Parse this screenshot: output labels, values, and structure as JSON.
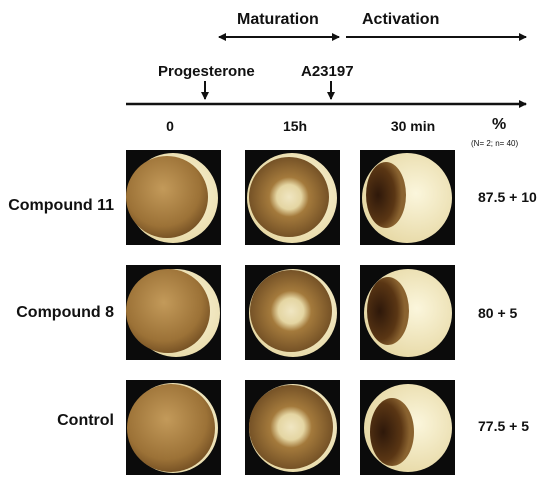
{
  "timeline": {
    "phases": [
      "Maturation",
      "Activation"
    ],
    "events": [
      "Progesterone",
      "A23197"
    ]
  },
  "columns": [
    "0",
    "15h",
    "30 min"
  ],
  "result_header": {
    "symbol": "%",
    "note": "(N= 2; n= 40)"
  },
  "rows": [
    {
      "label": "Compound 11",
      "value": "87.5 + 10"
    },
    {
      "label": "Compound 8",
      "value": "80 + 5"
    },
    {
      "label": "Control",
      "value": "77.5 + 5"
    }
  ],
  "colors": {
    "line": "#111111",
    "photo_background": "#0b0b0b",
    "yolk_pale": "#f3ebc4",
    "yolk_brown": "#a0773c",
    "dark_pigment": "#3d220e"
  },
  "icons": [
    "double-arrow-icon",
    "right-arrow-icon",
    "down-arrow-icon"
  ]
}
